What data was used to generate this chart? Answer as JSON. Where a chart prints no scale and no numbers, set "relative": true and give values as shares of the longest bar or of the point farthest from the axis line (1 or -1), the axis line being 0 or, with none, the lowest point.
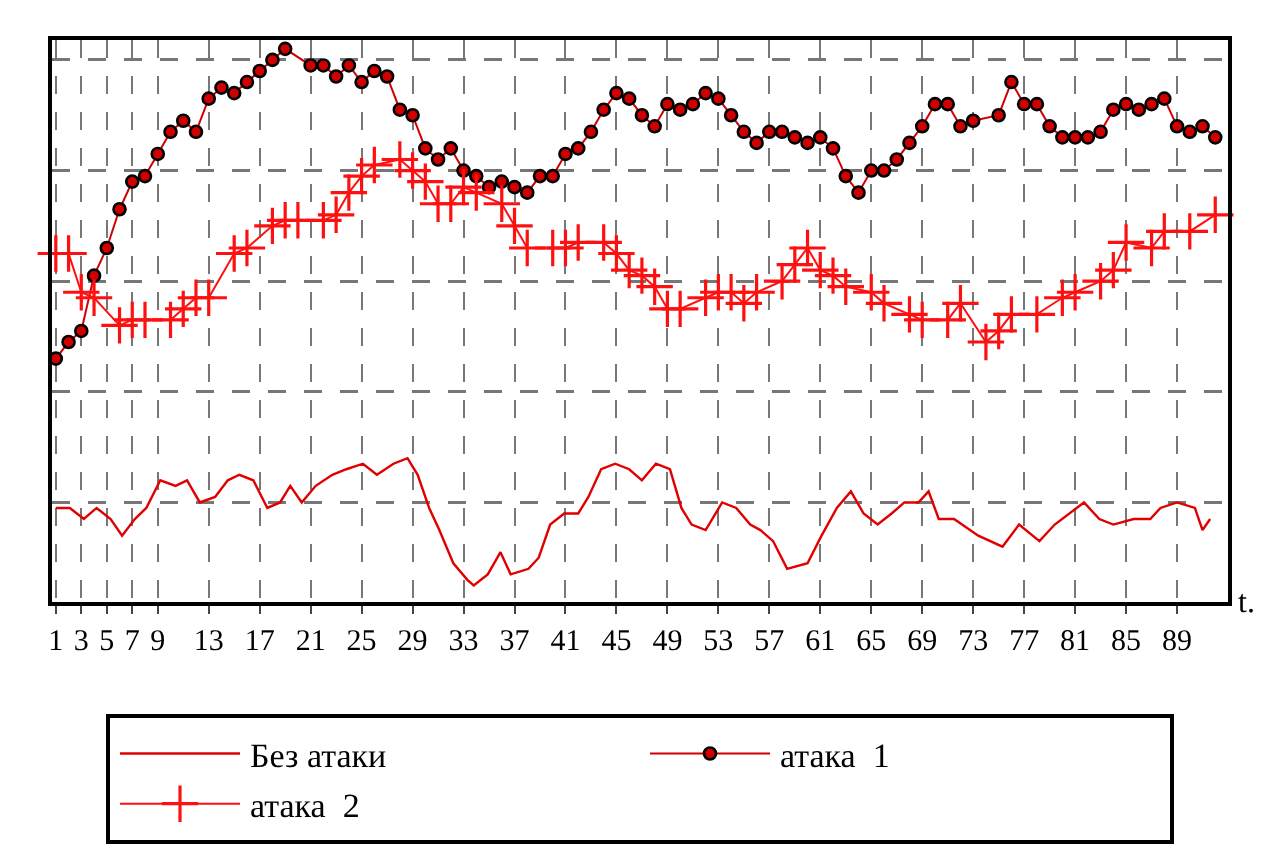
{
  "chart_data": {
    "type": "line",
    "relative": true,
    "xlabel": "t.",
    "xlim": [
      0.7,
      93
    ],
    "xticks": [
      1,
      3,
      5,
      7,
      9,
      13,
      17,
      21,
      25,
      29,
      33,
      37,
      41,
      45,
      49,
      53,
      57,
      61,
      65,
      69,
      73,
      77,
      81,
      85,
      89
    ],
    "grid": true,
    "legend": "bottom",
    "series": [
      {
        "name": "Без атаки",
        "color": "#e00000",
        "marker": "none",
        "x": [
          1.0,
          2.1,
          3.2,
          4.2,
          5.3,
          6.2,
          7.2,
          8.1,
          9.2,
          10.4,
          11.3,
          12.3,
          13.5,
          14.5,
          15.4,
          16.5,
          17.6,
          18.6,
          19.4,
          20.3,
          21.4,
          22.7,
          23.8,
          25.1,
          26.2,
          27.5,
          28.6,
          29.4,
          30.3,
          31.1,
          32.2,
          33.3,
          33.8,
          34.9,
          35.9,
          36.7,
          38.1,
          38.9,
          39.8,
          40.9,
          42.0,
          42.8,
          43.8,
          44.9,
          46.0,
          47.0,
          48.1,
          49.2,
          50.1,
          50.9,
          52.0,
          53.3,
          54.4,
          55.5,
          56.3,
          57.3,
          58.4,
          60.0,
          61.1,
          62.3,
          63.4,
          64.4,
          65.5,
          66.6,
          67.6,
          68.7,
          69.5,
          70.3,
          71.5,
          73.4,
          75.3,
          76.6,
          78.2,
          79.4,
          81.7,
          82.9,
          84.0,
          85.6,
          86.9,
          87.7,
          89.0,
          90.4,
          91.0,
          91.6
        ],
        "values": [
          0.17,
          0.17,
          0.15,
          0.17,
          0.15,
          0.12,
          0.15,
          0.17,
          0.22,
          0.21,
          0.22,
          0.18,
          0.19,
          0.22,
          0.23,
          0.22,
          0.17,
          0.18,
          0.21,
          0.18,
          0.21,
          0.23,
          0.24,
          0.25,
          0.23,
          0.25,
          0.26,
          0.23,
          0.17,
          0.13,
          0.07,
          0.04,
          0.03,
          0.05,
          0.09,
          0.05,
          0.06,
          0.08,
          0.14,
          0.16,
          0.16,
          0.19,
          0.24,
          0.25,
          0.24,
          0.22,
          0.25,
          0.24,
          0.17,
          0.14,
          0.13,
          0.18,
          0.17,
          0.14,
          0.13,
          0.11,
          0.06,
          0.07,
          0.12,
          0.17,
          0.2,
          0.16,
          0.14,
          0.16,
          0.18,
          0.18,
          0.2,
          0.15,
          0.15,
          0.12,
          0.1,
          0.14,
          0.11,
          0.14,
          0.18,
          0.15,
          0.14,
          0.15,
          0.15,
          0.17,
          0.18,
          0.17,
          0.13,
          0.15
        ]
      },
      {
        "name": "атака  1",
        "color": "#d00000",
        "marker": "circle",
        "x": [
          1,
          2,
          3,
          4,
          5,
          6,
          7,
          8,
          9,
          10,
          11,
          12,
          13,
          14,
          15,
          16,
          17,
          18,
          19,
          21,
          22,
          23,
          24,
          25,
          26,
          27,
          28,
          29,
          30,
          31,
          32,
          33,
          34,
          35,
          36,
          37,
          38,
          39,
          40,
          41,
          42,
          43,
          44,
          45,
          46,
          47,
          48,
          49,
          50,
          51,
          52,
          53,
          54,
          55,
          56,
          57,
          58,
          59,
          60,
          61,
          62,
          63,
          64,
          65,
          66,
          67,
          68,
          69,
          70,
          71,
          72,
          73,
          75,
          76,
          77,
          78,
          79,
          80,
          81,
          82,
          83,
          84,
          85,
          86,
          87,
          88,
          89,
          90,
          91,
          92
        ],
        "values": [
          0.44,
          0.47,
          0.49,
          0.59,
          0.64,
          0.71,
          0.76,
          0.77,
          0.81,
          0.85,
          0.87,
          0.85,
          0.91,
          0.93,
          0.92,
          0.94,
          0.96,
          0.98,
          1.0,
          0.97,
          0.97,
          0.95,
          0.97,
          0.94,
          0.96,
          0.95,
          0.89,
          0.88,
          0.82,
          0.8,
          0.82,
          0.78,
          0.77,
          0.75,
          0.76,
          0.75,
          0.74,
          0.77,
          0.77,
          0.81,
          0.82,
          0.85,
          0.89,
          0.92,
          0.91,
          0.88,
          0.86,
          0.9,
          0.89,
          0.9,
          0.92,
          0.91,
          0.88,
          0.85,
          0.83,
          0.85,
          0.85,
          0.84,
          0.83,
          0.84,
          0.82,
          0.77,
          0.74,
          0.78,
          0.78,
          0.8,
          0.83,
          0.86,
          0.9,
          0.9,
          0.86,
          0.87,
          0.88,
          0.94,
          0.9,
          0.9,
          0.86,
          0.84,
          0.84,
          0.84,
          0.85,
          0.89,
          0.9,
          0.89,
          0.9,
          0.91,
          0.86,
          0.85,
          0.86,
          0.84
        ]
      },
      {
        "name": "атака  2",
        "color": "#ff1010",
        "marker": "cross",
        "x": [
          1,
          2,
          3,
          4,
          6,
          7,
          8,
          10,
          11,
          12,
          13,
          15,
          16,
          18,
          19,
          20,
          22,
          23,
          24,
          25,
          26,
          28,
          29,
          30,
          31,
          32,
          33,
          34,
          36,
          37,
          38,
          40,
          41,
          42,
          44,
          45,
          46,
          47,
          48,
          49,
          50,
          52,
          53,
          54,
          55,
          56,
          58,
          59,
          60,
          61,
          62,
          63,
          65,
          66,
          68,
          69,
          71,
          72,
          74,
          75,
          76,
          78,
          80,
          81,
          83,
          84,
          85,
          87,
          88,
          90,
          92
        ],
        "values": [
          0.63,
          0.63,
          0.56,
          0.55,
          0.5,
          0.51,
          0.51,
          0.51,
          0.53,
          0.55,
          0.55,
          0.63,
          0.64,
          0.68,
          0.69,
          0.69,
          0.69,
          0.7,
          0.74,
          0.77,
          0.79,
          0.8,
          0.78,
          0.76,
          0.72,
          0.72,
          0.75,
          0.74,
          0.72,
          0.68,
          0.64,
          0.64,
          0.64,
          0.65,
          0.65,
          0.63,
          0.6,
          0.59,
          0.57,
          0.53,
          0.53,
          0.55,
          0.56,
          0.56,
          0.54,
          0.56,
          0.58,
          0.61,
          0.64,
          0.6,
          0.59,
          0.57,
          0.56,
          0.54,
          0.52,
          0.51,
          0.51,
          0.54,
          0.47,
          0.49,
          0.52,
          0.52,
          0.55,
          0.56,
          0.58,
          0.6,
          0.65,
          0.64,
          0.67,
          0.67,
          0.7
        ]
      }
    ]
  }
}
